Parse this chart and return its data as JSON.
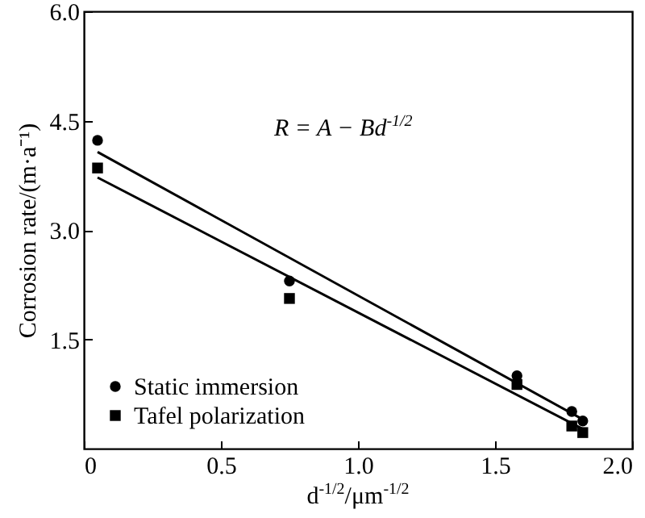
{
  "chart_data": {
    "type": "scatter",
    "xlabel": "d$^{-1/2}$/μm$^{-1/2}$",
    "ylabel": "Corrosion rate/(m·a⁻¹)",
    "annotations": [
      "R = A − Bd$^{-1/2}$"
    ],
    "xlim": [
      0,
      2
    ],
    "ylim": [
      0,
      6
    ],
    "xticks": [
      0,
      0.5,
      {
        "value": 1,
        "label": "1.0"
      },
      1.5,
      {
        "value": 2,
        "label": "2.0"
      }
    ],
    "yticks": [
      1.5,
      {
        "value": 3,
        "label": "3.0"
      },
      4.5,
      {
        "value": 6,
        "label": "6.0"
      }
    ],
    "grid": false,
    "legend": "bottom left",
    "series": [
      {
        "name": "Static immersion",
        "type": "scatter",
        "marker": "circle",
        "color": "#000000",
        "x": [
          0.05,
          0.75,
          1.58,
          1.78,
          1.82
        ],
        "values": [
          4.23,
          2.3,
          1.0,
          0.51,
          0.38
        ]
      },
      {
        "name": "Tafel polarization",
        "type": "scatter",
        "marker": "square",
        "color": "#000000",
        "x": [
          0.05,
          0.75,
          1.58,
          1.78,
          1.82
        ],
        "values": [
          3.85,
          2.06,
          0.88,
          0.31,
          0.22
        ]
      },
      {
        "type": "line",
        "color": "#000000",
        "x": [
          0.05,
          1.83
        ],
        "values": [
          4.07,
          0.38
        ]
      },
      {
        "type": "line",
        "color": "#000000",
        "x": [
          0.05,
          1.83
        ],
        "values": [
          3.72,
          0.25
        ]
      }
    ]
  }
}
